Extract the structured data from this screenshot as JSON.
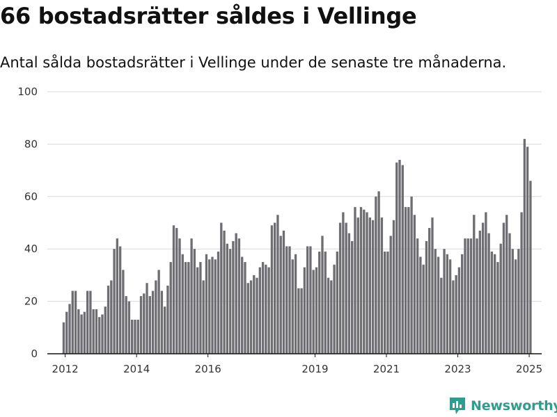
{
  "header": {
    "title": "66 bostadsrätter såldes i Vellinge",
    "subtitle": "Antal sålda bostadsrätter i Vellinge under de senaste tre månaderna."
  },
  "brand": {
    "name": "Newsworthy",
    "icon": "newsworthy-logo-icon",
    "color": "#2e9c8e"
  },
  "colors": {
    "bar": "#6e6d72",
    "highlight": "#21998c",
    "grid": "#d9d9d9",
    "axis": "#111111"
  },
  "chart_data": {
    "type": "bar",
    "title": "66 bostadsrätter såldes i Vellinge",
    "subtitle": "Antal sålda bostadsrätter i Vellinge under de senaste tre månaderna.",
    "xlabel": "",
    "ylabel": "",
    "ylim": [
      0,
      100
    ],
    "yticks": [
      0,
      20,
      40,
      60,
      80,
      100
    ],
    "grid": true,
    "xlim": [
      2011.5,
      2025.35
    ],
    "xticks": [
      2012,
      2014,
      2016,
      2019,
      2021,
      2023,
      2025
    ],
    "x_start": 2011.958,
    "x_step": 0.0833,
    "values": [
      12,
      16,
      19,
      24,
      24,
      17,
      15,
      16,
      24,
      24,
      17,
      17,
      14,
      15,
      18,
      26,
      28,
      40,
      44,
      41,
      32,
      22,
      20,
      13,
      13,
      13,
      22,
      23,
      27,
      22,
      24,
      28,
      32,
      24,
      18,
      26,
      35,
      49,
      48,
      44,
      38,
      35,
      35,
      44,
      40,
      33,
      35,
      28,
      38,
      36,
      37,
      36,
      39,
      50,
      47,
      42,
      40,
      43,
      46,
      44,
      37,
      35,
      27,
      28,
      30,
      29,
      33,
      35,
      34,
      33,
      49,
      50,
      53,
      45,
      47,
      41,
      41,
      36,
      38,
      25,
      25,
      33,
      41,
      41,
      32,
      33,
      39,
      45,
      39,
      29,
      28,
      34,
      39,
      50,
      54,
      50,
      46,
      43,
      56,
      52,
      56,
      55,
      54,
      52,
      51,
      60,
      62,
      52,
      39,
      39,
      45,
      51,
      73,
      74,
      72,
      56,
      56,
      60,
      53,
      44,
      37,
      34,
      43,
      48,
      52,
      40,
      37,
      29,
      40,
      38,
      36,
      28,
      30,
      33,
      38,
      44,
      44,
      44,
      53,
      44,
      47,
      50,
      54,
      46,
      39,
      38,
      35,
      42,
      50,
      53,
      46,
      40,
      36,
      40,
      54,
      82,
      79,
      66
    ],
    "highlight_index": 158,
    "annotation": {
      "text": "66"
    }
  }
}
